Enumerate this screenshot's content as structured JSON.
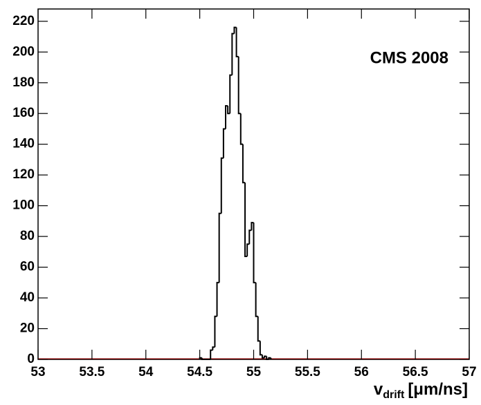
{
  "chart_data": {
    "type": "histogram",
    "annotation": "CMS 2008",
    "xlabel": {
      "main": "v",
      "sub": "drift",
      "unit": "[μm/ns]"
    },
    "bins": [
      54.5,
      54.52,
      54.54,
      54.56,
      54.58,
      54.6,
      54.62,
      54.64,
      54.66,
      54.68,
      54.7,
      54.72,
      54.74,
      54.76,
      54.78,
      54.8,
      54.82,
      54.84,
      54.86,
      54.88,
      54.9,
      54.92,
      54.94,
      54.96,
      54.98,
      55.0,
      55.02,
      55.04,
      55.06,
      55.08,
      55.1,
      55.12,
      55.14,
      55.16
    ],
    "values": [
      1,
      0,
      0,
      0,
      0,
      6,
      8,
      28,
      50,
      95,
      131,
      150,
      165,
      160,
      185,
      212,
      216,
      197,
      160,
      140,
      115,
      67,
      75,
      84,
      89,
      50,
      28,
      12,
      3,
      1,
      2,
      0,
      1
    ],
    "color": "#000000",
    "xlim": [
      53,
      57
    ],
    "ylim": [
      0,
      228
    ],
    "xticks": [
      53,
      53.5,
      54,
      54.5,
      55,
      55.5,
      56,
      56.5,
      57
    ],
    "yticks": [
      0,
      20,
      40,
      60,
      80,
      100,
      120,
      140,
      160,
      180,
      200,
      220
    ]
  }
}
